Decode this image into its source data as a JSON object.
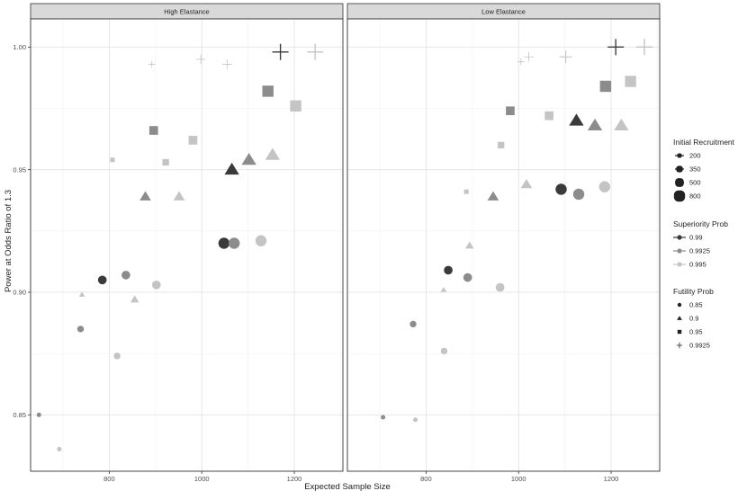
{
  "chart_data": {
    "type": "scatter",
    "xlabel": "Expected Sample Size",
    "ylabel": "Power at Odds Ratio of 1.3",
    "xlim": [
      630,
      1305
    ],
    "ylim": [
      0.827,
      1.0115
    ],
    "x_ticks": [
      800,
      1000,
      1200
    ],
    "y_ticks": [
      0.85,
      0.9,
      0.95,
      1.0
    ],
    "y_tick_labels": [
      "0.85",
      "0.90",
      "0.95",
      "1.00"
    ],
    "grid": true,
    "legend_position": "right",
    "panels": [
      {
        "title": "High Elastance",
        "points": [
          {
            "x": 648,
            "y": 0.85,
            "rec": "200",
            "sup": "0.9925",
            "fut": "0.85"
          },
          {
            "x": 692,
            "y": 0.836,
            "rec": "200",
            "sup": "0.995",
            "fut": "0.85"
          },
          {
            "x": 741,
            "y": 0.899,
            "rec": "200",
            "sup": "0.995",
            "fut": "0.9"
          },
          {
            "x": 892,
            "y": 0.993,
            "rec": "200",
            "sup": "0.995",
            "fut": "0.9925"
          },
          {
            "x": 807,
            "y": 0.954,
            "rec": "200",
            "sup": "0.995",
            "fut": "0.95"
          },
          {
            "x": 738,
            "y": 0.885,
            "rec": "350",
            "sup": "0.9925",
            "fut": "0.85"
          },
          {
            "x": 817,
            "y": 0.874,
            "rec": "350",
            "sup": "0.995",
            "fut": "0.85"
          },
          {
            "x": 855,
            "y": 0.897,
            "rec": "350",
            "sup": "0.995",
            "fut": "0.9"
          },
          {
            "x": 922,
            "y": 0.953,
            "rec": "350",
            "sup": "0.995",
            "fut": "0.95"
          },
          {
            "x": 998,
            "y": 0.995,
            "rec": "350",
            "sup": "0.995",
            "fut": "0.9925"
          },
          {
            "x": 1055,
            "y": 0.993,
            "rec": "350",
            "sup": "0.995",
            "fut": "0.9925"
          },
          {
            "x": 785,
            "y": 0.905,
            "rec": "500",
            "sup": "0.99",
            "fut": "0.85"
          },
          {
            "x": 836,
            "y": 0.907,
            "rec": "500",
            "sup": "0.9925",
            "fut": "0.85"
          },
          {
            "x": 902,
            "y": 0.903,
            "rec": "500",
            "sup": "0.995",
            "fut": "0.85"
          },
          {
            "x": 878,
            "y": 0.939,
            "rec": "500",
            "sup": "0.9925",
            "fut": "0.9"
          },
          {
            "x": 951,
            "y": 0.939,
            "rec": "500",
            "sup": "0.995",
            "fut": "0.9"
          },
          {
            "x": 896,
            "y": 0.966,
            "rec": "500",
            "sup": "0.9925",
            "fut": "0.95"
          },
          {
            "x": 981,
            "y": 0.962,
            "rec": "500",
            "sup": "0.995",
            "fut": "0.95"
          },
          {
            "x": 1048,
            "y": 0.92,
            "rec": "800",
            "sup": "0.99",
            "fut": "0.85"
          },
          {
            "x": 1070,
            "y": 0.92,
            "rec": "800",
            "sup": "0.9925",
            "fut": "0.85"
          },
          {
            "x": 1128,
            "y": 0.921,
            "rec": "800",
            "sup": "0.995",
            "fut": "0.85"
          },
          {
            "x": 1065,
            "y": 0.95,
            "rec": "800",
            "sup": "0.99",
            "fut": "0.9"
          },
          {
            "x": 1102,
            "y": 0.954,
            "rec": "800",
            "sup": "0.9925",
            "fut": "0.9"
          },
          {
            "x": 1153,
            "y": 0.956,
            "rec": "800",
            "sup": "0.995",
            "fut": "0.9"
          },
          {
            "x": 1143,
            "y": 0.982,
            "rec": "800",
            "sup": "0.9925",
            "fut": "0.95"
          },
          {
            "x": 1203,
            "y": 0.976,
            "rec": "800",
            "sup": "0.995",
            "fut": "0.95"
          },
          {
            "x": 1170,
            "y": 0.998,
            "rec": "800",
            "sup": "0.99",
            "fut": "0.9925"
          },
          {
            "x": 1245,
            "y": 0.998,
            "rec": "800",
            "sup": "0.995",
            "fut": "0.9925"
          }
        ]
      },
      {
        "title": "Low Elastance",
        "points": [
          {
            "x": 707,
            "y": 0.849,
            "rec": "200",
            "sup": "0.9925",
            "fut": "0.85"
          },
          {
            "x": 777,
            "y": 0.848,
            "rec": "200",
            "sup": "0.995",
            "fut": "0.85"
          },
          {
            "x": 838,
            "y": 0.901,
            "rec": "200",
            "sup": "0.995",
            "fut": "0.9"
          },
          {
            "x": 887,
            "y": 0.941,
            "rec": "200",
            "sup": "0.995",
            "fut": "0.95"
          },
          {
            "x": 1005,
            "y": 0.994,
            "rec": "200",
            "sup": "0.995",
            "fut": "0.9925"
          },
          {
            "x": 772,
            "y": 0.887,
            "rec": "350",
            "sup": "0.9925",
            "fut": "0.85"
          },
          {
            "x": 839,
            "y": 0.876,
            "rec": "350",
            "sup": "0.995",
            "fut": "0.85"
          },
          {
            "x": 894,
            "y": 0.919,
            "rec": "350",
            "sup": "0.995",
            "fut": "0.9"
          },
          {
            "x": 962,
            "y": 0.96,
            "rec": "350",
            "sup": "0.995",
            "fut": "0.95"
          },
          {
            "x": 1022,
            "y": 0.996,
            "rec": "350",
            "sup": "0.995",
            "fut": "0.9925"
          },
          {
            "x": 848,
            "y": 0.909,
            "rec": "500",
            "sup": "0.99",
            "fut": "0.85"
          },
          {
            "x": 890,
            "y": 0.906,
            "rec": "500",
            "sup": "0.9925",
            "fut": "0.85"
          },
          {
            "x": 960,
            "y": 0.902,
            "rec": "500",
            "sup": "0.995",
            "fut": "0.85"
          },
          {
            "x": 945,
            "y": 0.939,
            "rec": "500",
            "sup": "0.9925",
            "fut": "0.9"
          },
          {
            "x": 1017,
            "y": 0.944,
            "rec": "500",
            "sup": "0.995",
            "fut": "0.9"
          },
          {
            "x": 982,
            "y": 0.974,
            "rec": "500",
            "sup": "0.9925",
            "fut": "0.95"
          },
          {
            "x": 1066,
            "y": 0.972,
            "rec": "500",
            "sup": "0.995",
            "fut": "0.95"
          },
          {
            "x": 1102,
            "y": 0.996,
            "rec": "500",
            "sup": "0.995",
            "fut": "0.9925"
          },
          {
            "x": 1092,
            "y": 0.942,
            "rec": "800",
            "sup": "0.99",
            "fut": "0.85"
          },
          {
            "x": 1130,
            "y": 0.94,
            "rec": "800",
            "sup": "0.9925",
            "fut": "0.85"
          },
          {
            "x": 1186,
            "y": 0.943,
            "rec": "800",
            "sup": "0.995",
            "fut": "0.85"
          },
          {
            "x": 1125,
            "y": 0.97,
            "rec": "800",
            "sup": "0.99",
            "fut": "0.9"
          },
          {
            "x": 1165,
            "y": 0.968,
            "rec": "800",
            "sup": "0.9925",
            "fut": "0.9"
          },
          {
            "x": 1222,
            "y": 0.968,
            "rec": "800",
            "sup": "0.995",
            "fut": "0.9"
          },
          {
            "x": 1188,
            "y": 0.984,
            "rec": "800",
            "sup": "0.9925",
            "fut": "0.95"
          },
          {
            "x": 1242,
            "y": 0.986,
            "rec": "800",
            "sup": "0.995",
            "fut": "0.95"
          },
          {
            "x": 1210,
            "y": 1.0,
            "rec": "800",
            "sup": "0.99",
            "fut": "0.9925"
          },
          {
            "x": 1272,
            "y": 1.0,
            "rec": "800",
            "sup": "0.995",
            "fut": "0.9925"
          }
        ]
      }
    ],
    "legends": [
      {
        "title": "Initial Recruitment",
        "aesthetic": "size",
        "entries": [
          "200",
          "350",
          "500",
          "800"
        ]
      },
      {
        "title": "Superiority Prob",
        "aesthetic": "colour",
        "entries": [
          "0.99",
          "0.9925",
          "0.995"
        ]
      },
      {
        "title": "Futility Prob",
        "aesthetic": "shape",
        "entries": [
          "0.85",
          "0.9",
          "0.95",
          "0.9925"
        ]
      }
    ],
    "colors": {
      "0.99": "#3a3a3a",
      "0.9925": "#8c8c8c",
      "0.995": "#c4c4c4"
    },
    "shapes": {
      "0.85": "circle",
      "0.9": "triangle",
      "0.95": "square",
      "0.9925": "plus"
    }
  }
}
